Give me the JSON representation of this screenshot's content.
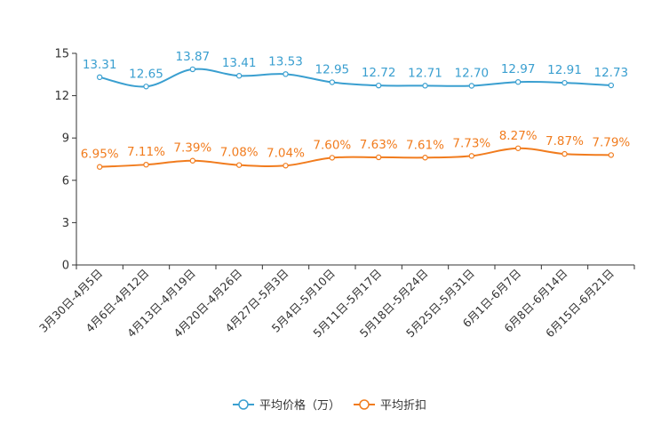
{
  "chart_data": {
    "type": "line",
    "title": "",
    "xlabel": "",
    "ylabel": "",
    "ylim": [
      0,
      15
    ],
    "yticks": [
      "0",
      "3",
      "6",
      "9",
      "12",
      "15"
    ],
    "categories": [
      "3月30日-4月5日",
      "4月6日-4月12日",
      "4月13日-4月19日",
      "4月20日-4月26日",
      "4月27日-5月3日",
      "5月4日-5月10日",
      "5月11日-5月17日",
      "5月18日-5月24日",
      "5月25日-5月31日",
      "6月1日-6月7日",
      "6月8日-6月14日",
      "6月15日-6月21日"
    ],
    "series": [
      {
        "name": "平均价格（万）",
        "color": "#3a9fd0",
        "values": [
          13.31,
          12.65,
          13.87,
          13.41,
          13.53,
          12.95,
          12.72,
          12.71,
          12.7,
          12.97,
          12.91,
          12.73
        ],
        "labels": [
          "13.31",
          "12.65",
          "13.87",
          "13.41",
          "13.53",
          "12.95",
          "12.72",
          "12.71",
          "12.70",
          "12.97",
          "12.91",
          "12.73"
        ]
      },
      {
        "name": "平均折扣",
        "color": "#f17c1e",
        "values": [
          6.95,
          7.11,
          7.39,
          7.08,
          7.04,
          7.6,
          7.63,
          7.61,
          7.73,
          8.27,
          7.87,
          7.79
        ],
        "labels": [
          "6.95%",
          "7.11%",
          "7.39%",
          "7.08%",
          "7.04%",
          "7.60%",
          "7.63%",
          "7.61%",
          "7.73%",
          "8.27%",
          "7.87%",
          "7.79%"
        ]
      }
    ],
    "legend": [
      "平均价格（万）",
      "平均折扣"
    ],
    "legend_position": "bottom-center",
    "grid": false
  }
}
